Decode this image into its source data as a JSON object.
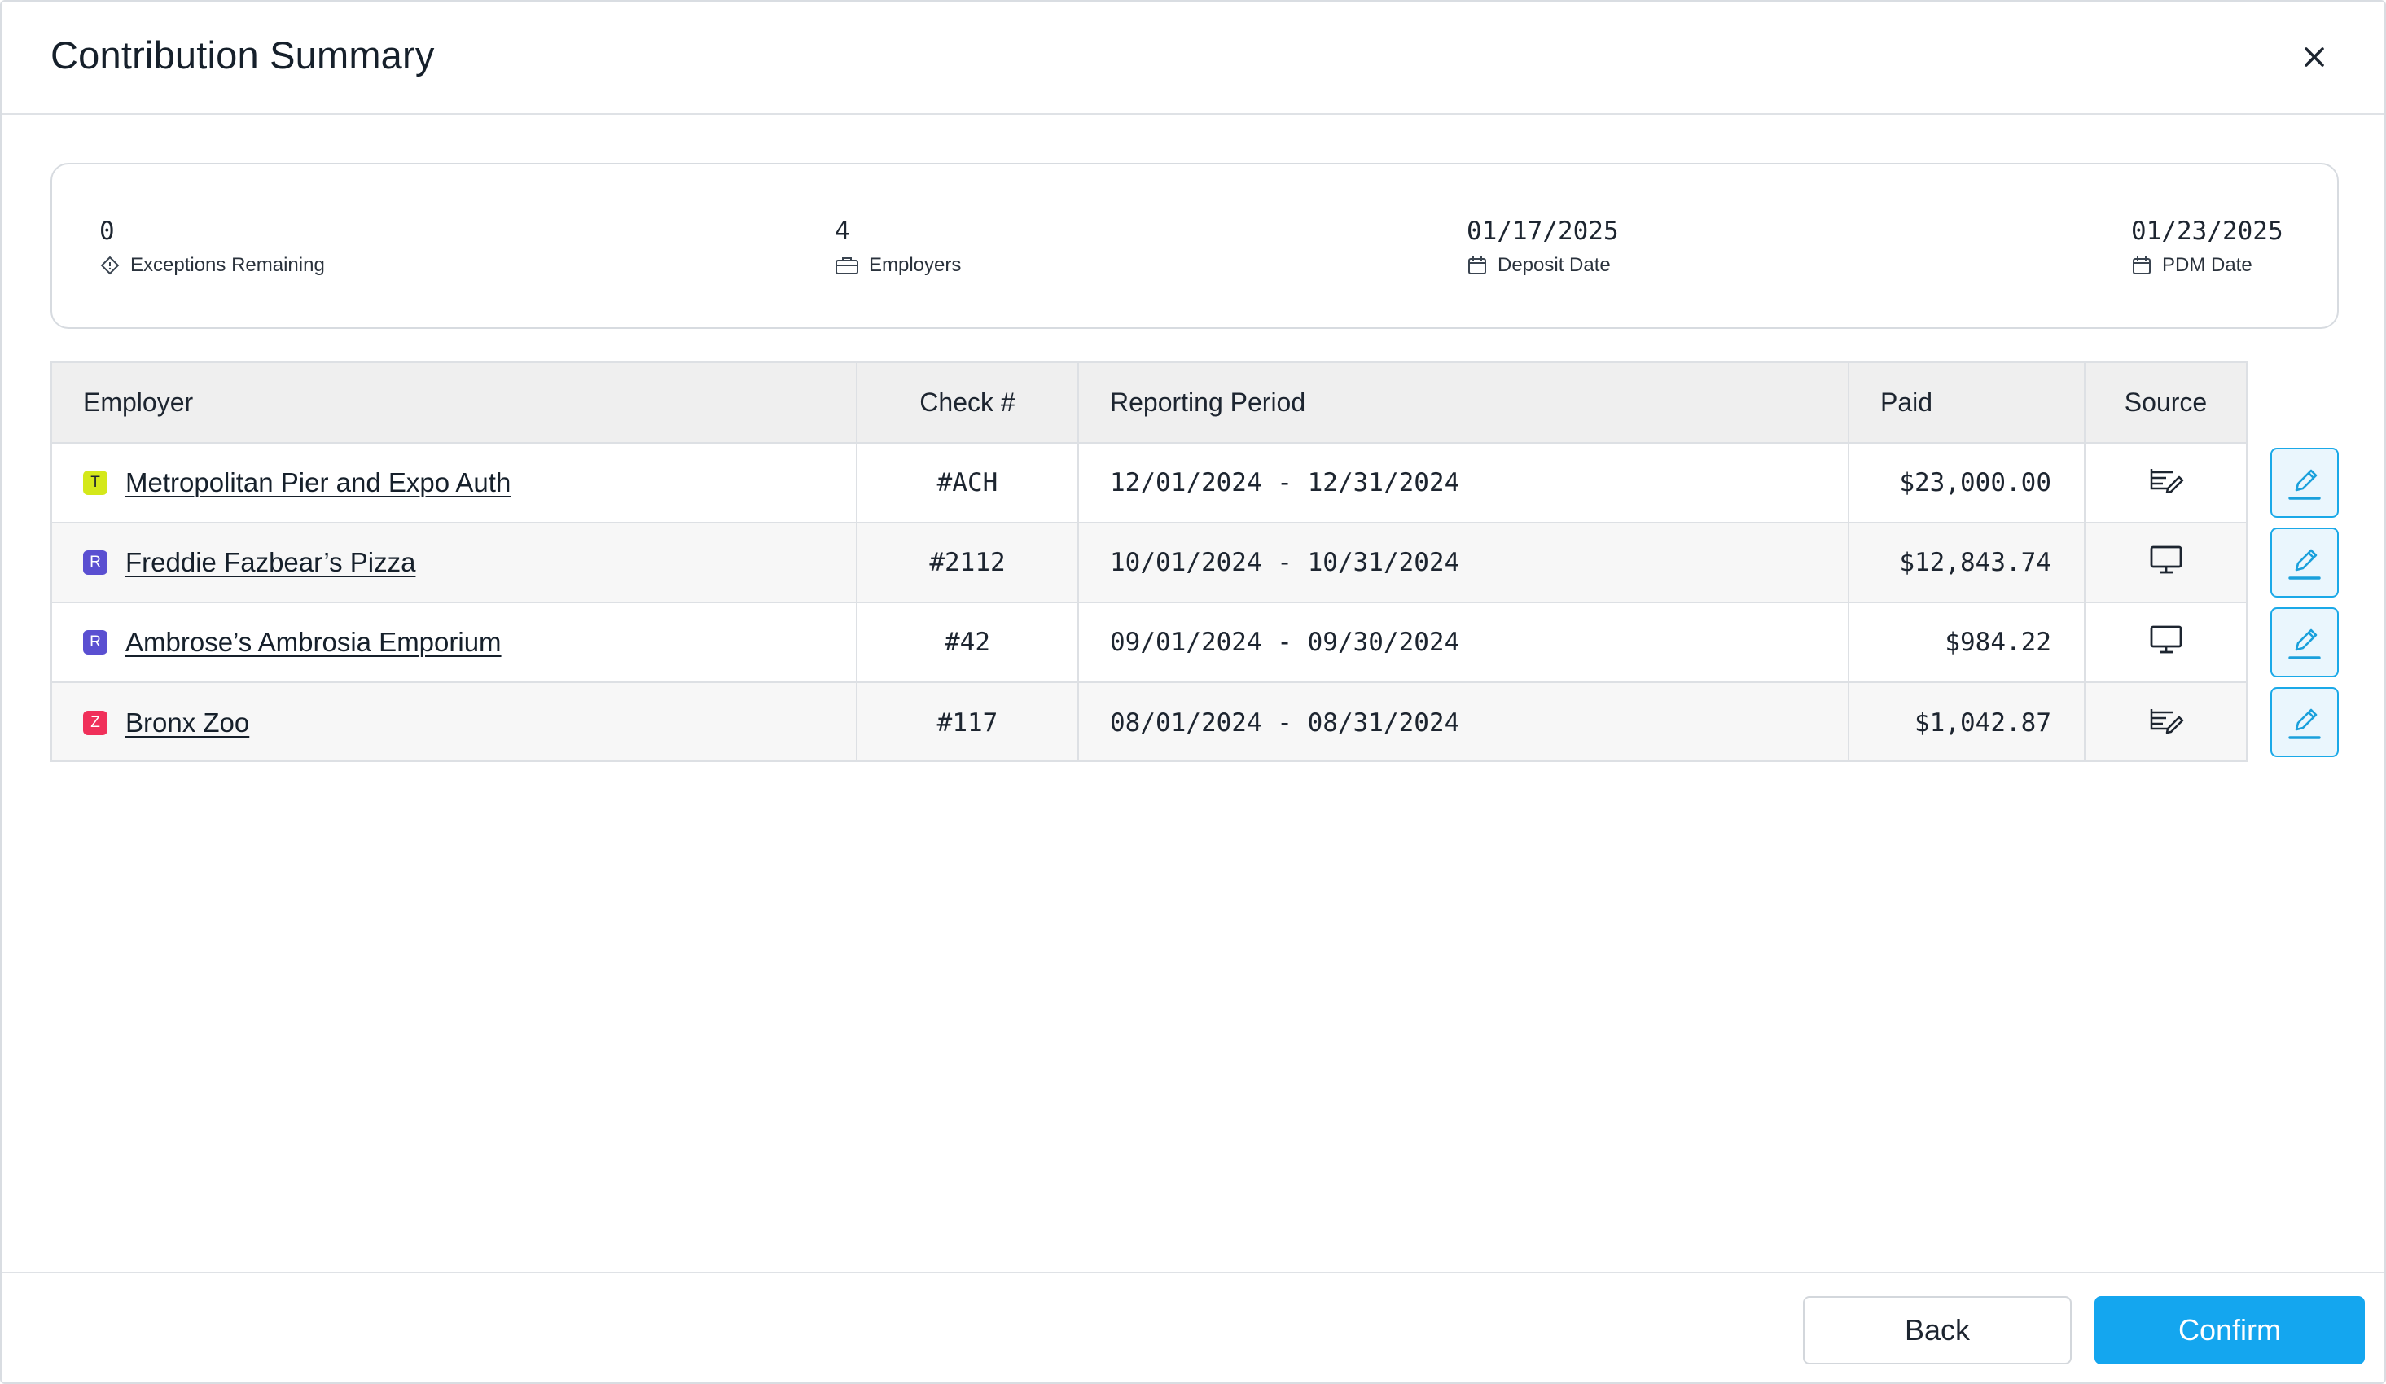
{
  "dialog": {
    "title": "Contribution Summary",
    "close_icon": "close-icon"
  },
  "summary": {
    "exceptions": {
      "value": "0",
      "label": "Exceptions Remaining",
      "icon": "diamond-alert-icon"
    },
    "employers": {
      "value": "4",
      "label": "Employers",
      "icon": "briefcase-icon"
    },
    "deposit_date": {
      "value": "01/17/2025",
      "label": "Deposit Date",
      "icon": "calendar-icon"
    },
    "pdm_date": {
      "value": "01/23/2025",
      "label": "PDM Date",
      "icon": "calendar-icon"
    }
  },
  "table": {
    "columns": [
      "Employer",
      "Check #",
      "Reporting Period",
      "Paid",
      "Source"
    ],
    "rows": [
      {
        "badge": "T",
        "badge_color": "#d4e81a",
        "badge_text_color": "#1d2530",
        "employer": "Metropolitan Pier and Expo Auth",
        "check": "#ACH",
        "period": "12/01/2024 - 12/31/2024",
        "paid": "$23,000.00",
        "source_icon": "manual-entry-icon"
      },
      {
        "badge": "R",
        "badge_color": "#5a4fd1",
        "badge_text_color": "#ffffff",
        "employer": "Freddie Fazbear’s Pizza",
        "check": "#2112",
        "period": "10/01/2024 - 10/31/2024",
        "paid": "$12,843.74",
        "source_icon": "monitor-icon"
      },
      {
        "badge": "R",
        "badge_color": "#5a4fd1",
        "badge_text_color": "#ffffff",
        "employer": "Ambrose’s Ambrosia Emporium",
        "check": "#42",
        "period": "09/01/2024 - 09/30/2024",
        "paid": "$984.22",
        "source_icon": "monitor-icon"
      },
      {
        "badge": "Z",
        "badge_color": "#f0305a",
        "badge_text_color": "#ffffff",
        "employer": "Bronx Zoo",
        "check": "#117",
        "period": "08/01/2024 - 08/31/2024",
        "paid": "$1,042.87",
        "source_icon": "manual-entry-icon"
      }
    ],
    "edit_icon": "pencil-edit-icon"
  },
  "footer": {
    "back_label": "Back",
    "confirm_label": "Confirm"
  },
  "colors": {
    "accent": "#14a6ef",
    "header_bg": "#efefef",
    "border": "#dde0e4"
  }
}
